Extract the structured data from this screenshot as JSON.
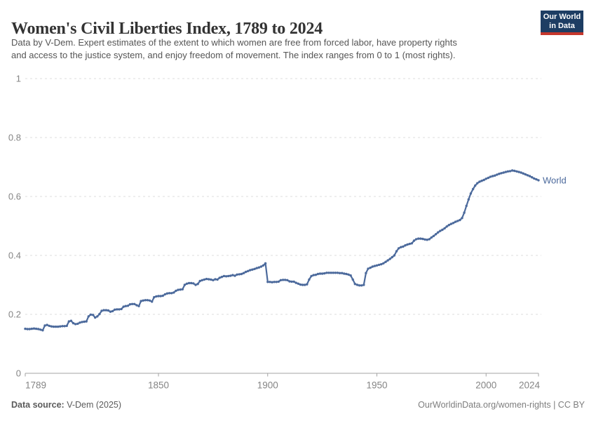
{
  "header": {
    "title": "Women's Civil Liberties Index, 1789 to 2024",
    "subtitle_lines": [
      "Data by V-Dem. Expert estimates of the extent to which women are free from forced labor, have property rights",
      "and access to the justice system, and enjoy freedom of movement. The index ranges from 0 to 1 (most rights)."
    ]
  },
  "logo": {
    "line1": "Our World",
    "line2": "in Data",
    "background": "#1d3d63",
    "accent": "#c5372c",
    "text_color": "#ffffff"
  },
  "footer": {
    "source_label": "Data source:",
    "source_value": " V-Dem (2025)",
    "right_text": "OurWorldinData.org/women-rights | CC BY"
  },
  "chart_data": {
    "type": "line",
    "title": "Women's Civil Liberties Index, 1789 to 2024",
    "xlabel": "",
    "ylabel": "",
    "xlim": [
      1789,
      2024
    ],
    "ylim": [
      0,
      1
    ],
    "xticks": [
      1789,
      1850,
      1900,
      1950,
      2000,
      2024
    ],
    "yticks": [
      0,
      0.2,
      0.4,
      0.6,
      0.8,
      1
    ],
    "grid": "horizontal-dashed",
    "legend": "end-of-line-label",
    "line_color": "#4C6A9C",
    "axis_color": "#a3a3a3",
    "gridline_color": "#dcdcdc",
    "tick_label_color": "#858585",
    "series": [
      {
        "name": "World",
        "start_year": 1789,
        "end_year": 2024,
        "values": [
          0.151,
          0.15,
          0.15,
          0.151,
          0.152,
          0.151,
          0.15,
          0.148,
          0.146,
          0.162,
          0.164,
          0.161,
          0.159,
          0.158,
          0.158,
          0.158,
          0.159,
          0.16,
          0.16,
          0.161,
          0.176,
          0.178,
          0.17,
          0.167,
          0.168,
          0.172,
          0.174,
          0.175,
          0.176,
          0.193,
          0.199,
          0.198,
          0.189,
          0.193,
          0.201,
          0.212,
          0.214,
          0.214,
          0.213,
          0.209,
          0.211,
          0.216,
          0.217,
          0.217,
          0.218,
          0.226,
          0.228,
          0.229,
          0.234,
          0.235,
          0.235,
          0.231,
          0.228,
          0.245,
          0.247,
          0.248,
          0.248,
          0.247,
          0.243,
          0.258,
          0.261,
          0.262,
          0.262,
          0.263,
          0.268,
          0.271,
          0.272,
          0.272,
          0.274,
          0.28,
          0.283,
          0.284,
          0.285,
          0.3,
          0.304,
          0.306,
          0.306,
          0.305,
          0.3,
          0.303,
          0.313,
          0.316,
          0.318,
          0.32,
          0.319,
          0.318,
          0.316,
          0.319,
          0.318,
          0.324,
          0.327,
          0.33,
          0.329,
          0.33,
          0.331,
          0.333,
          0.331,
          0.335,
          0.336,
          0.337,
          0.34,
          0.344,
          0.347,
          0.35,
          0.352,
          0.354,
          0.357,
          0.359,
          0.362,
          0.366,
          0.373,
          0.31,
          0.31,
          0.309,
          0.31,
          0.31,
          0.311,
          0.316,
          0.317,
          0.317,
          0.316,
          0.312,
          0.311,
          0.311,
          0.307,
          0.304,
          0.301,
          0.3,
          0.3,
          0.302,
          0.318,
          0.33,
          0.333,
          0.334,
          0.337,
          0.338,
          0.338,
          0.339,
          0.341,
          0.341,
          0.341,
          0.341,
          0.341,
          0.341,
          0.34,
          0.34,
          0.338,
          0.337,
          0.335,
          0.332,
          0.318,
          0.303,
          0.3,
          0.298,
          0.298,
          0.3,
          0.34,
          0.355,
          0.358,
          0.362,
          0.364,
          0.366,
          0.368,
          0.37,
          0.373,
          0.378,
          0.383,
          0.388,
          0.394,
          0.4,
          0.414,
          0.424,
          0.428,
          0.43,
          0.434,
          0.437,
          0.439,
          0.441,
          0.45,
          0.455,
          0.457,
          0.457,
          0.456,
          0.454,
          0.453,
          0.455,
          0.461,
          0.466,
          0.472,
          0.478,
          0.483,
          0.487,
          0.492,
          0.498,
          0.503,
          0.507,
          0.51,
          0.514,
          0.517,
          0.52,
          0.527,
          0.545,
          0.568,
          0.59,
          0.61,
          0.625,
          0.637,
          0.645,
          0.65,
          0.653,
          0.656,
          0.66,
          0.663,
          0.667,
          0.669,
          0.671,
          0.674,
          0.677,
          0.679,
          0.681,
          0.683,
          0.685,
          0.686,
          0.688,
          0.687,
          0.685,
          0.683,
          0.681,
          0.678,
          0.675,
          0.672,
          0.669,
          0.665,
          0.661,
          0.658,
          0.655
        ]
      }
    ]
  }
}
